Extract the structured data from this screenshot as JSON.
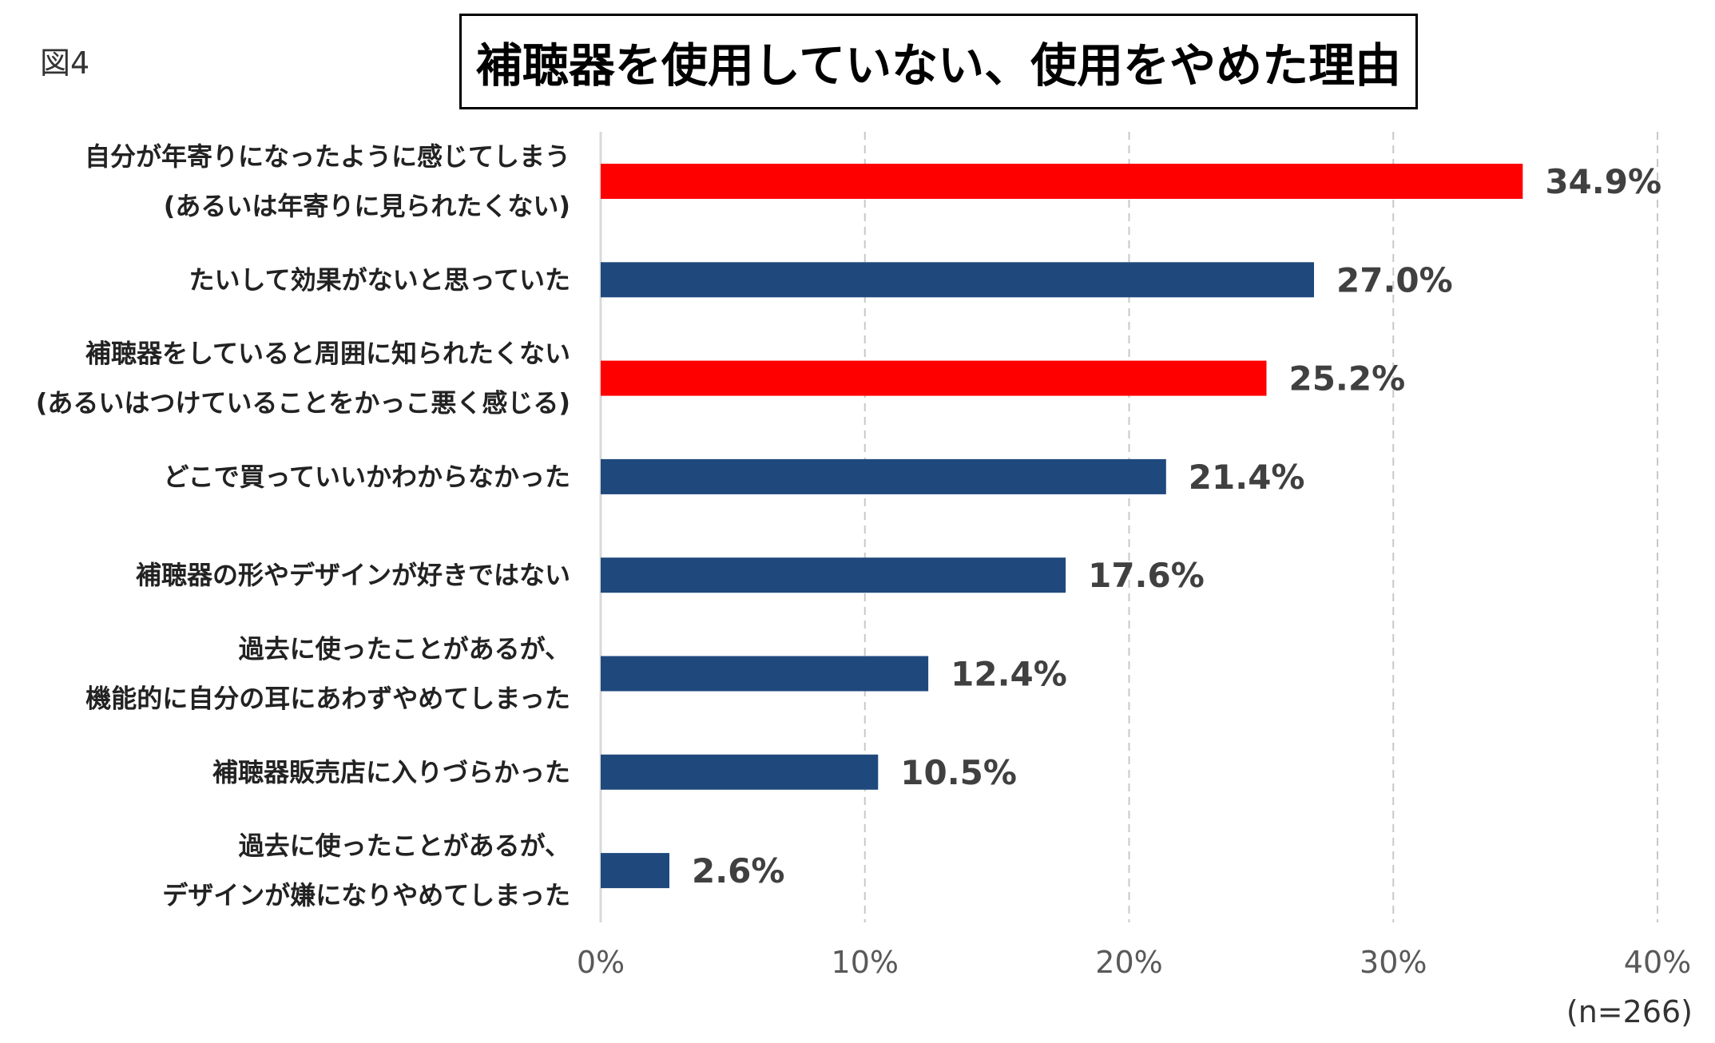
{
  "figure_label": "図4",
  "note": "(n=266)",
  "chart_data": {
    "type": "bar",
    "orientation": "horizontal",
    "title": "補聴器を使用していない、使用をやめた理由",
    "categories": [
      [
        "自分が年寄りになったように感じてしまう",
        "(あるいは年寄りに見られたくない)"
      ],
      [
        "たいして効果がないと思っていた"
      ],
      [
        "補聴器をしていると周囲に知られたくない",
        "(あるいはつけていることをかっこ悪く感じる)"
      ],
      [
        "どこで買っていいかわからなかった"
      ],
      [
        "補聴器の形やデザインが好きではない"
      ],
      [
        "過去に使ったことがあるが、",
        "機能的に自分の耳にあわずやめてしまった"
      ],
      [
        "補聴器販売店に入りづらかった"
      ],
      [
        "過去に使ったことがあるが、",
        "デザインが嫌になりやめてしまった"
      ]
    ],
    "values": [
      34.9,
      27.0,
      25.2,
      21.4,
      17.6,
      12.4,
      10.5,
      2.6
    ],
    "value_labels": [
      "34.9%",
      "27.0%",
      "25.2%",
      "21.4%",
      "17.6%",
      "12.4%",
      "10.5%",
      "2.6%"
    ],
    "highlighted": [
      true,
      false,
      true,
      false,
      false,
      false,
      false,
      false
    ],
    "colors": {
      "highlight": "#ff0000",
      "default": "#1f497d",
      "grid": "#c8c8c8",
      "axis": "#d9d9d9"
    },
    "xlim": [
      0,
      40
    ],
    "xticks": [
      0,
      10,
      20,
      30,
      40
    ],
    "xtick_labels": [
      "0%",
      "10%",
      "20%",
      "30%",
      "40%"
    ],
    "grid": true,
    "xlabel": "",
    "ylabel": ""
  }
}
